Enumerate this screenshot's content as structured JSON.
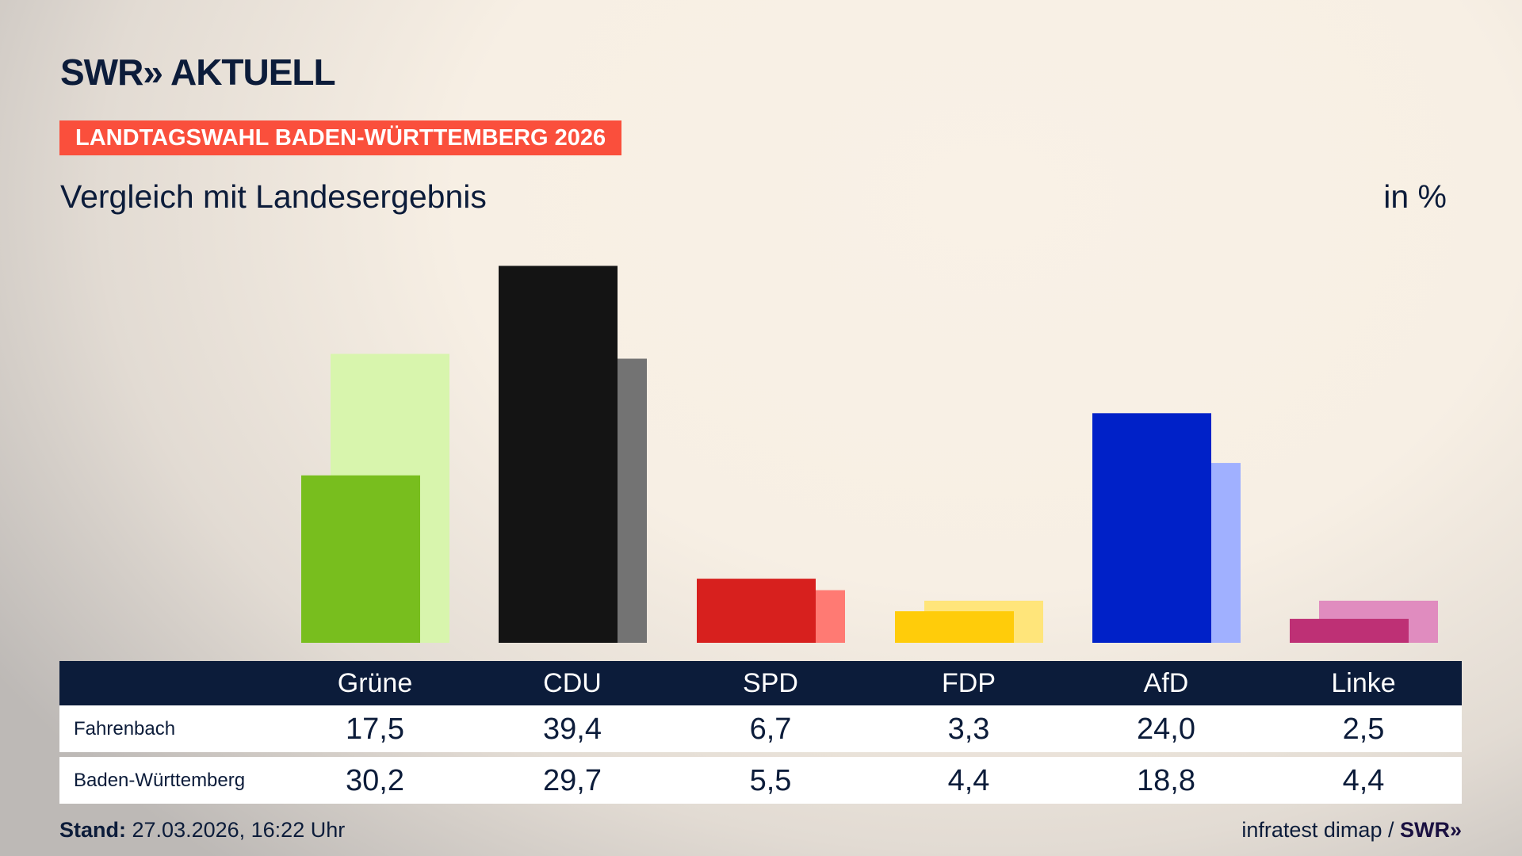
{
  "logo": "SWR» AKTUELL",
  "banner": "LANDTAGSWAHL BADEN-WÜRTTEMBERG 2026",
  "subtitle": "Vergleich mit Landesergebnis",
  "unit": "in %",
  "table": {
    "headers": [
      "Grüne",
      "CDU",
      "SPD",
      "FDP",
      "AfD",
      "Linke"
    ],
    "rows": [
      {
        "label": "Fahrenbach",
        "values": [
          "17,5",
          "39,4",
          "6,7",
          "3,3",
          "24,0",
          "2,5"
        ]
      },
      {
        "label": "Baden-Württemberg",
        "values": [
          "30,2",
          "29,7",
          "5,5",
          "4,4",
          "18,8",
          "4,4"
        ]
      }
    ]
  },
  "footer": {
    "stand_label": "Stand:",
    "stand_value": "27.03.2026, 16:22 Uhr",
    "source": "infratest dimap /",
    "source_logo": "SWR»"
  },
  "chart_data": {
    "type": "bar",
    "categories": [
      "Grüne",
      "CDU",
      "SPD",
      "FDP",
      "AfD",
      "Linke"
    ],
    "series": [
      {
        "name": "Fahrenbach",
        "values": [
          17.5,
          39.4,
          6.7,
          3.3,
          24.0,
          2.5
        ],
        "colors": [
          "#78be1e",
          "#141414",
          "#d7201e",
          "#ffcc0a",
          "#0021c8",
          "#be3075"
        ]
      },
      {
        "name": "Baden-Württemberg",
        "values": [
          30.2,
          29.7,
          5.5,
          4.4,
          18.8,
          4.4
        ],
        "colors": [
          "#d8f5ad",
          "#737373",
          "#ff7a73",
          "#ffe57a",
          "#a0b0ff",
          "#e08cbf"
        ]
      }
    ],
    "ylim": [
      0,
      40
    ],
    "grid": false,
    "unit": "in %"
  }
}
